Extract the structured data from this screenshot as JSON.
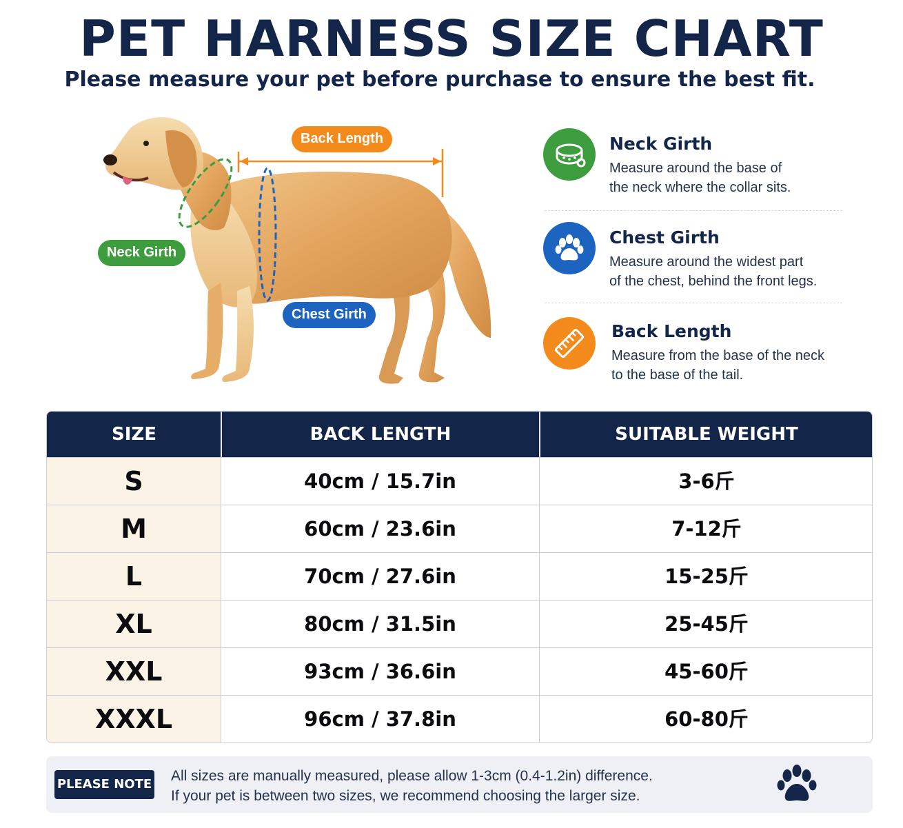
{
  "header": {
    "title": "PET HARNESS SIZE CHART",
    "subtitle": "Please measure your pet before purchase to ensure the best fit."
  },
  "diagram": {
    "labels": {
      "back_length": "Back Length",
      "neck_girth": "Neck Girth",
      "chest_girth": "Chest Girth"
    }
  },
  "measurements": [
    {
      "icon": "collar-icon",
      "title": "Neck Girth",
      "line1": "Measure around the base of",
      "line2": "the neck where the collar sits.",
      "color": "#3c9c3e"
    },
    {
      "icon": "paw-icon",
      "title": "Chest Girth",
      "line1": "Measure around the widest part",
      "line2": "of the chest, behind the front legs.",
      "color": "#1d63c0"
    },
    {
      "icon": "ruler-icon",
      "title": "Back Length",
      "line1": "Measure from the base of the neck",
      "line2": "to the base of the tail.",
      "color": "#f38b1c"
    }
  ],
  "table": {
    "headers": [
      "SIZE",
      "BACK LENGTH",
      "SUITABLE WEIGHT"
    ],
    "rows": [
      {
        "size": "S",
        "back": "40cm / 15.7in",
        "weight": "3-6斤"
      },
      {
        "size": "M",
        "back": "60cm / 23.6in",
        "weight": "7-12斤"
      },
      {
        "size": "L",
        "back": "70cm / 27.6in",
        "weight": "15-25斤"
      },
      {
        "size": "XL",
        "back": "80cm / 31.5in",
        "weight": "25-45斤"
      },
      {
        "size": "XXL",
        "back": "93cm / 36.6in",
        "weight": "45-60斤"
      },
      {
        "size": "XXXL",
        "back": "96cm / 37.8in",
        "weight": "60-80斤"
      }
    ]
  },
  "note": {
    "badge": "PLEASE NOTE",
    "line1": "All sizes are manually measured, please allow 1-3cm (0.4-1.2in) difference.",
    "line2": "If your pet is between two sizes, we recommend choosing the larger size."
  },
  "colors": {
    "navy": "#13264a",
    "green": "#3c9c3e",
    "blue": "#1d63c0",
    "orange": "#f38b1c",
    "size_column": "#fbf3e5"
  }
}
